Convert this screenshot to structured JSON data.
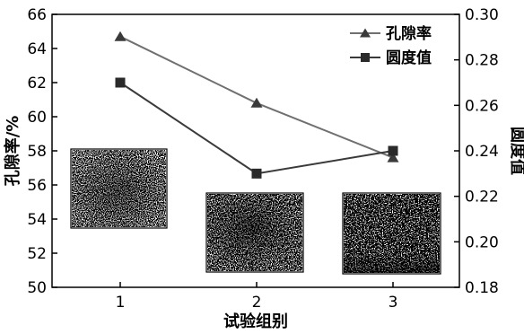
{
  "chart_data": {
    "type": "line",
    "categories": [
      "1",
      "2",
      "3"
    ],
    "xlabel": "试验组别",
    "ylabel_left": "孔隙率/%",
    "ylabel_right": "圆度值",
    "yleft_lim": [
      50,
      66
    ],
    "yleft_ticks": [
      "50",
      "52",
      "54",
      "56",
      "58",
      "60",
      "62",
      "64",
      "66"
    ],
    "yright_lim": [
      0.18,
      0.3
    ],
    "yright_ticks": [
      "0.18",
      "0.20",
      "0.22",
      "0.24",
      "0.26",
      "0.28",
      "0.30"
    ],
    "grid": false,
    "legend_position": "top-right",
    "series": [
      {
        "name": "孔隙率",
        "axis": "left",
        "marker": "triangle",
        "color": "#707070",
        "values": [
          64.7,
          60.8,
          57.6
        ]
      },
      {
        "name": "圆度值",
        "axis": "right",
        "marker": "square",
        "color": "#3a3a3a",
        "values": [
          0.27,
          0.23,
          0.24
        ]
      }
    ],
    "insets": [
      {
        "name": "inset-micrograph-1",
        "category": "1"
      },
      {
        "name": "inset-micrograph-2",
        "category": "2"
      },
      {
        "name": "inset-micrograph-3",
        "category": "3"
      }
    ]
  }
}
